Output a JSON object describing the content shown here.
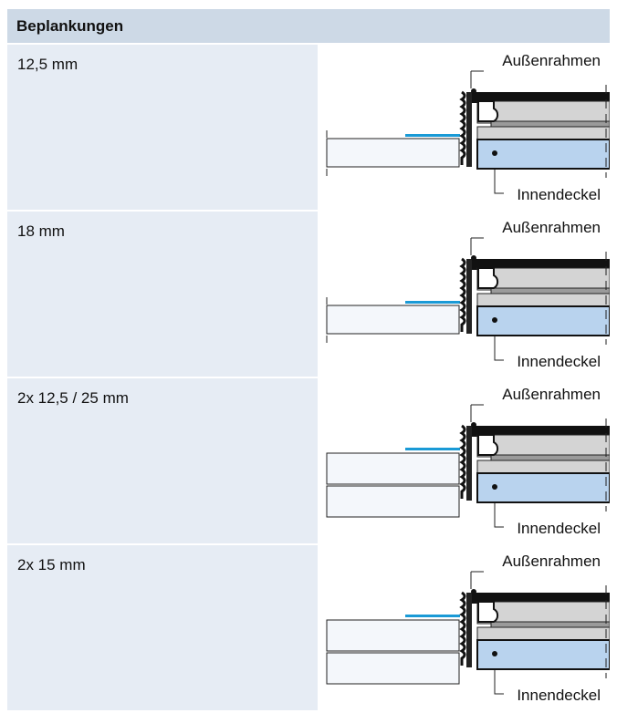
{
  "header": {
    "title": "Beplankungen"
  },
  "rows": [
    {
      "label": "12,5 mm",
      "outer_label": "Außenrahmen",
      "inner_label": "Innendeckel",
      "boards": 1
    },
    {
      "label": "18 mm",
      "outer_label": "Außenrahmen",
      "inner_label": "Innendeckel",
      "boards": 1
    },
    {
      "label": "2x 12,5 / 25 mm",
      "outer_label": "Außenrahmen",
      "inner_label": "Innendeckel",
      "boards": 2
    },
    {
      "label": "2x 15 mm",
      "outer_label": "Außenrahmen",
      "inner_label": "Innendeckel",
      "boards": 2
    }
  ],
  "colors": {
    "header_bg": "#cdd9e6",
    "row_bg": "#e6ecf4",
    "lid_fill": "#b9d3ee",
    "seal": "#1a9ad6",
    "frame_grey": "#d4d4d4"
  }
}
